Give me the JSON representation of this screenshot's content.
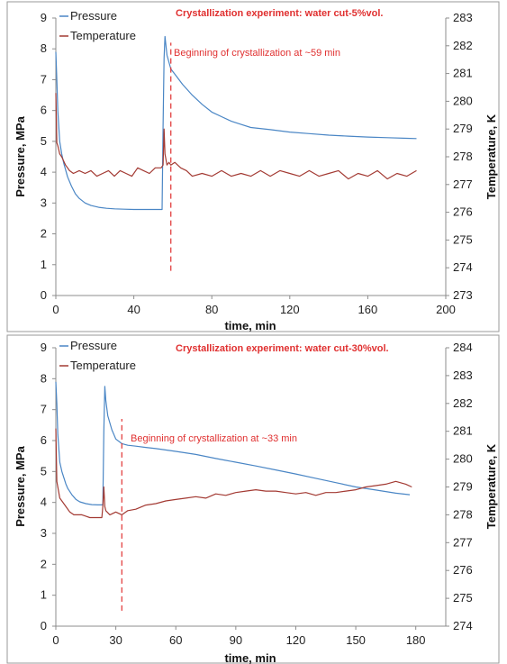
{
  "colors": {
    "pressure": "#4a86c5",
    "temperature": "#a33a33",
    "annotation": "#e03030",
    "axis": "#8c8c8c",
    "panel_border": "#9a9a9a"
  },
  "chart_data": [
    {
      "type": "line",
      "title": "Crystallization experiment: water cut-5%vol.",
      "xlabel": "time, min",
      "ylabel": "Pressure, MPa",
      "y2label": "Temperature, K",
      "xlim": [
        0,
        200
      ],
      "ylim": [
        0,
        9
      ],
      "y2lim": [
        273,
        283
      ],
      "xticks": [
        0,
        40,
        80,
        120,
        160,
        200
      ],
      "yticks": [
        0,
        1,
        2,
        3,
        4,
        5,
        6,
        7,
        8,
        9
      ],
      "y2ticks": [
        273,
        274,
        275,
        276,
        277,
        278,
        279,
        280,
        281,
        282,
        283
      ],
      "grid": false,
      "legend": "top-left",
      "annotation": {
        "text": "Beginning of crystallization at ~59 min",
        "x": 59,
        "from": 0.8,
        "to": 8.2
      },
      "series": [
        {
          "name": "Pressure",
          "axis": "left",
          "x": [
            0,
            0.5,
            1,
            2,
            3,
            4,
            6,
            8,
            10,
            12,
            15,
            18,
            22,
            26,
            30,
            35,
            40,
            45,
            50,
            54.5,
            55,
            55.5,
            56,
            57,
            59,
            62,
            65,
            70,
            75,
            80,
            85,
            90,
            95,
            100,
            110,
            120,
            130,
            140,
            150,
            160,
            170,
            180,
            185
          ],
          "y": [
            7.9,
            7.0,
            6.0,
            5.0,
            4.6,
            4.3,
            3.85,
            3.55,
            3.3,
            3.15,
            3.0,
            2.92,
            2.86,
            2.83,
            2.81,
            2.8,
            2.79,
            2.79,
            2.79,
            2.79,
            5.5,
            7.7,
            8.4,
            7.8,
            7.35,
            7.1,
            6.85,
            6.5,
            6.2,
            5.95,
            5.8,
            5.65,
            5.55,
            5.45,
            5.38,
            5.3,
            5.25,
            5.2,
            5.17,
            5.14,
            5.12,
            5.1,
            5.09
          ]
        },
        {
          "name": "Temperature",
          "axis": "right",
          "x": [
            0,
            0.5,
            1,
            2,
            3,
            5,
            7,
            9,
            12,
            15,
            18,
            21,
            24,
            27,
            30,
            33,
            36,
            39,
            42,
            45,
            48,
            51,
            54,
            55,
            55.5,
            56,
            57,
            58,
            59,
            61,
            64,
            67,
            70,
            75,
            80,
            85,
            90,
            95,
            100,
            105,
            110,
            115,
            120,
            125,
            130,
            135,
            140,
            145,
            150,
            155,
            160,
            165,
            170,
            175,
            180,
            185
          ],
          "y": [
            280.3,
            278.5,
            278.4,
            278.1,
            278.0,
            277.7,
            277.5,
            277.4,
            277.5,
            277.4,
            277.5,
            277.3,
            277.4,
            277.5,
            277.3,
            277.5,
            277.4,
            277.3,
            277.6,
            277.5,
            277.4,
            277.6,
            277.6,
            277.7,
            279.0,
            278.1,
            277.7,
            277.8,
            277.7,
            277.8,
            277.6,
            277.5,
            277.3,
            277.4,
            277.3,
            277.5,
            277.3,
            277.4,
            277.3,
            277.5,
            277.3,
            277.5,
            277.4,
            277.3,
            277.5,
            277.3,
            277.4,
            277.5,
            277.2,
            277.4,
            277.3,
            277.5,
            277.2,
            277.4,
            277.3,
            277.5
          ]
        }
      ]
    },
    {
      "type": "line",
      "title": "Crystallization experiment: water cut-30%vol.",
      "xlabel": "time, min",
      "ylabel": "Pressure, MPa",
      "y2label": "Temperature, K",
      "xlim": [
        0,
        195
      ],
      "ylim": [
        0,
        9
      ],
      "y2lim": [
        274,
        284
      ],
      "xticks": [
        0,
        30,
        60,
        90,
        120,
        150,
        180
      ],
      "yticks": [
        0,
        1,
        2,
        3,
        4,
        5,
        6,
        7,
        8,
        9
      ],
      "y2ticks": [
        274,
        275,
        276,
        277,
        278,
        279,
        280,
        281,
        282,
        283,
        284
      ],
      "grid": false,
      "legend": "top-left",
      "annotation": {
        "text": "Beginning of crystallization at ~33 min",
        "x": 33,
        "from": 0.5,
        "to": 6.7
      },
      "series": [
        {
          "name": "Pressure",
          "axis": "left",
          "x": [
            0,
            0.5,
            1,
            2,
            3,
            4,
            5,
            6,
            8,
            10,
            12,
            15,
            18,
            21,
            23.5,
            24,
            24.5,
            25,
            26,
            28,
            30,
            33,
            36,
            40,
            45,
            50,
            60,
            70,
            80,
            90,
            100,
            110,
            120,
            130,
            140,
            150,
            160,
            170,
            177
          ],
          "y": [
            7.9,
            7.2,
            6.2,
            5.3,
            5.0,
            4.8,
            4.6,
            4.45,
            4.25,
            4.1,
            4.02,
            3.96,
            3.93,
            3.92,
            3.92,
            6.3,
            7.75,
            7.3,
            6.8,
            6.35,
            6.05,
            5.9,
            5.85,
            5.82,
            5.78,
            5.74,
            5.65,
            5.55,
            5.42,
            5.3,
            5.18,
            5.05,
            4.92,
            4.78,
            4.64,
            4.5,
            4.4,
            4.3,
            4.25
          ]
        },
        {
          "name": "Temperature",
          "axis": "right",
          "x": [
            0,
            0.5,
            1,
            2,
            3,
            5,
            7,
            9,
            11,
            13,
            15,
            17,
            19,
            21,
            23,
            23.5,
            24,
            24.5,
            25,
            27,
            30,
            33,
            36,
            40,
            45,
            50,
            55,
            60,
            65,
            70,
            75,
            80,
            85,
            90,
            95,
            100,
            105,
            110,
            115,
            120,
            125,
            130,
            135,
            140,
            145,
            150,
            155,
            160,
            165,
            170,
            175,
            178
          ],
          "y": [
            281.1,
            279.2,
            279.0,
            278.6,
            278.5,
            278.3,
            278.1,
            278.0,
            278.0,
            278.0,
            277.95,
            277.9,
            277.9,
            277.9,
            277.9,
            278.3,
            279.0,
            278.3,
            278.15,
            278.0,
            278.1,
            278.0,
            278.15,
            278.2,
            278.35,
            278.4,
            278.5,
            278.55,
            278.6,
            278.65,
            278.6,
            278.75,
            278.7,
            278.8,
            278.85,
            278.9,
            278.85,
            278.85,
            278.8,
            278.75,
            278.8,
            278.7,
            278.8,
            278.8,
            278.85,
            278.9,
            279.0,
            279.05,
            279.1,
            279.2,
            279.1,
            279.0
          ]
        }
      ]
    }
  ]
}
